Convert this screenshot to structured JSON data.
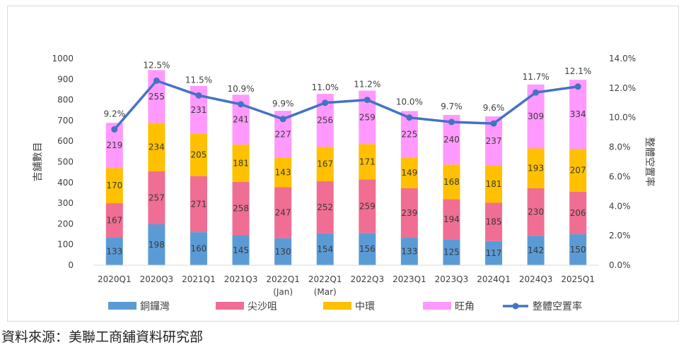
{
  "chart_data": {
    "type": "bar",
    "stacked": true,
    "categories": [
      "2020Q1",
      "2020Q3",
      "2021Q1",
      "2021Q3",
      "2022Q1",
      "2022Q1",
      "2022Q3",
      "2023Q1",
      "2023Q3",
      "2024Q1",
      "2024Q3",
      "2025Q1"
    ],
    "category_sublabels": [
      "",
      "",
      "",
      "",
      "(Jan)",
      "(Mar)",
      "",
      "",
      "",
      "",
      "",
      ""
    ],
    "series": [
      {
        "name": "銅鑼灣",
        "color": "#5b9bd5",
        "values": [
          133,
          198,
          160,
          145,
          130,
          154,
          156,
          133,
          125,
          117,
          142,
          150
        ]
      },
      {
        "name": "尖沙咀",
        "color": "#f06e93",
        "values": [
          167,
          257,
          271,
          258,
          247,
          252,
          259,
          239,
          194,
          185,
          230,
          206
        ]
      },
      {
        "name": "中環",
        "color": "#ffc000",
        "values": [
          170,
          234,
          205,
          181,
          143,
          167,
          171,
          149,
          168,
          181,
          193,
          207
        ]
      },
      {
        "name": "旺角",
        "color": "#ff99ff",
        "values": [
          219,
          255,
          231,
          241,
          227,
          256,
          259,
          225,
          240,
          237,
          309,
          334
        ]
      }
    ],
    "line_series": {
      "name": "整體空置率",
      "color": "#4472c4",
      "values": [
        9.2,
        12.5,
        11.5,
        10.9,
        9.9,
        11.0,
        11.2,
        10.0,
        9.7,
        9.6,
        11.7,
        12.1
      ],
      "labels": [
        "9.2%",
        "12.5%",
        "11.5%",
        "10.9%",
        "9.9%",
        "11.0%",
        "11.2%",
        "10.0%",
        "9.7%",
        "9.6%",
        "11.7%",
        "12.1%"
      ]
    },
    "ylabel": "吉舖數目",
    "y2label": "整體空置率",
    "ylim": [
      0,
      1000
    ],
    "y_ticks": [
      0,
      100,
      200,
      300,
      400,
      500,
      600,
      700,
      800,
      900,
      1000
    ],
    "y2lim": [
      0,
      14
    ],
    "y2_ticks": [
      0,
      2,
      4,
      6,
      8,
      10,
      12,
      14
    ],
    "y2_tick_labels": [
      "0.0%",
      "2.0%",
      "4.0%",
      "6.0%",
      "8.0%",
      "10.0%",
      "12.0%",
      "14.0%"
    ],
    "grid": false,
    "legend_position": "bottom"
  },
  "source_note": "資料來源：美聯工商舖資料研究部"
}
